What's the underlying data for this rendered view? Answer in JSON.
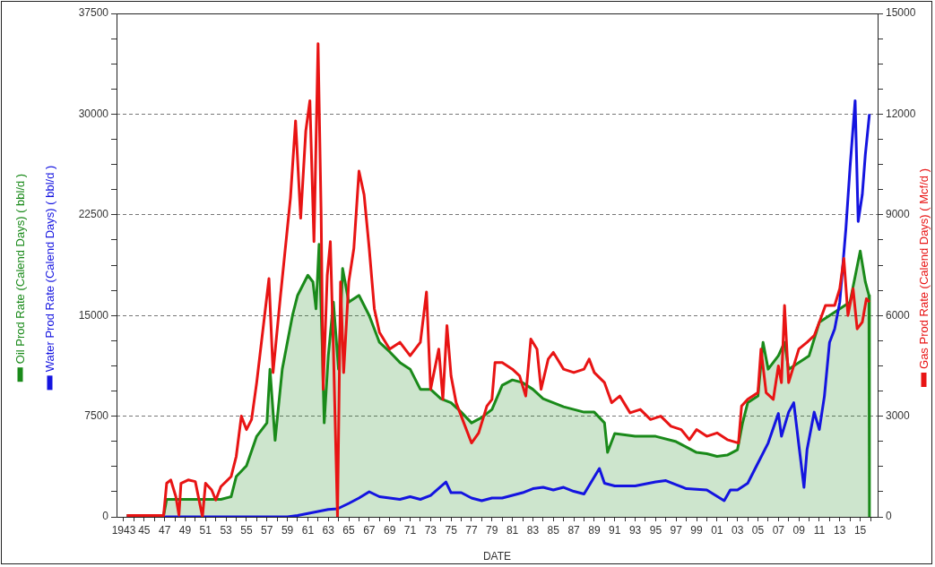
{
  "chart_data": {
    "type": "line",
    "xlabel": "DATE",
    "xlim": [
      1942.3,
      2016.7
    ],
    "xticks": [
      {
        "value": 1943,
        "label": "1943"
      },
      {
        "value": 1944,
        "label": null
      },
      {
        "value": 1945,
        "label": "45"
      },
      {
        "value": 1946,
        "label": null
      },
      {
        "value": 1947,
        "label": "47"
      },
      {
        "value": 1948,
        "label": null
      },
      {
        "value": 1949,
        "label": "49"
      },
      {
        "value": 1950,
        "label": null
      },
      {
        "value": 1951,
        "label": "51"
      },
      {
        "value": 1952,
        "label": null
      },
      {
        "value": 1953,
        "label": "53"
      },
      {
        "value": 1954,
        "label": null
      },
      {
        "value": 1955,
        "label": "55"
      },
      {
        "value": 1956,
        "label": null
      },
      {
        "value": 1957,
        "label": "57"
      },
      {
        "value": 1958,
        "label": null
      },
      {
        "value": 1959,
        "label": "59"
      },
      {
        "value": 1960,
        "label": null
      },
      {
        "value": 1961,
        "label": "61"
      },
      {
        "value": 1962,
        "label": null
      },
      {
        "value": 1963,
        "label": "63"
      },
      {
        "value": 1964,
        "label": null
      },
      {
        "value": 1965,
        "label": "65"
      },
      {
        "value": 1966,
        "label": null
      },
      {
        "value": 1967,
        "label": "67"
      },
      {
        "value": 1968,
        "label": null
      },
      {
        "value": 1969,
        "label": "69"
      },
      {
        "value": 1970,
        "label": null
      },
      {
        "value": 1971,
        "label": "71"
      },
      {
        "value": 1972,
        "label": null
      },
      {
        "value": 1973,
        "label": "73"
      },
      {
        "value": 1974,
        "label": null
      },
      {
        "value": 1975,
        "label": "75"
      },
      {
        "value": 1976,
        "label": null
      },
      {
        "value": 1977,
        "label": "77"
      },
      {
        "value": 1978,
        "label": null
      },
      {
        "value": 1979,
        "label": "79"
      },
      {
        "value": 1980,
        "label": null
      },
      {
        "value": 1981,
        "label": "81"
      },
      {
        "value": 1982,
        "label": null
      },
      {
        "value": 1983,
        "label": "83"
      },
      {
        "value": 1984,
        "label": null
      },
      {
        "value": 1985,
        "label": "85"
      },
      {
        "value": 1986,
        "label": null
      },
      {
        "value": 1987,
        "label": "87"
      },
      {
        "value": 1988,
        "label": null
      },
      {
        "value": 1989,
        "label": "89"
      },
      {
        "value": 1990,
        "label": null
      },
      {
        "value": 1991,
        "label": "91"
      },
      {
        "value": 1992,
        "label": null
      },
      {
        "value": 1993,
        "label": "93"
      },
      {
        "value": 1994,
        "label": null
      },
      {
        "value": 1995,
        "label": "95"
      },
      {
        "value": 1996,
        "label": null
      },
      {
        "value": 1997,
        "label": "97"
      },
      {
        "value": 1998,
        "label": null
      },
      {
        "value": 1999,
        "label": "99"
      },
      {
        "value": 2000,
        "label": null
      },
      {
        "value": 2001,
        "label": "01"
      },
      {
        "value": 2002,
        "label": null
      },
      {
        "value": 2003,
        "label": "03"
      },
      {
        "value": 2004,
        "label": null
      },
      {
        "value": 2005,
        "label": "05"
      },
      {
        "value": 2006,
        "label": null
      },
      {
        "value": 2007,
        "label": "07"
      },
      {
        "value": 2008,
        "label": null
      },
      {
        "value": 2009,
        "label": "09"
      },
      {
        "value": 2010,
        "label": null
      },
      {
        "value": 2011,
        "label": "11"
      },
      {
        "value": 2012,
        "label": null
      },
      {
        "value": 2013,
        "label": "13"
      },
      {
        "value": 2014,
        "label": null
      },
      {
        "value": 2015,
        "label": "15"
      },
      {
        "value": 2016,
        "label": null
      }
    ],
    "ylim": [
      0,
      37500
    ],
    "yticks": [
      0,
      {
        "value": 1875,
        "label": null
      },
      {
        "value": 3750,
        "label": null
      },
      {
        "value": 5625,
        "label": null
      },
      7500,
      {
        "value": 9375,
        "label": null
      },
      {
        "value": 11250,
        "label": null
      },
      {
        "value": 13125,
        "label": null
      },
      15000,
      {
        "value": 16875,
        "label": null
      },
      {
        "value": 18750,
        "label": null
      },
      {
        "value": 20625,
        "label": null
      },
      22500,
      {
        "value": 24375,
        "label": null
      },
      {
        "value": 26250,
        "label": null
      },
      {
        "value": 28125,
        "label": null
      },
      30000,
      {
        "value": 31875,
        "label": null
      },
      {
        "value": 33750,
        "label": null
      },
      {
        "value": 35625,
        "label": null
      },
      37500
    ],
    "y2lim": [
      0,
      15000
    ],
    "y2ticks": [
      0,
      {
        "value": 750,
        "label": null
      },
      {
        "value": 1500,
        "label": null
      },
      {
        "value": 2250,
        "label": null
      },
      3000,
      {
        "value": 3750,
        "label": null
      },
      {
        "value": 4500,
        "label": null
      },
      {
        "value": 5250,
        "label": null
      },
      6000,
      {
        "value": 6750,
        "label": null
      },
      {
        "value": 7500,
        "label": null
      },
      {
        "value": 8250,
        "label": null
      },
      9000,
      {
        "value": 9750,
        "label": null
      },
      {
        "value": 10500,
        "label": null
      },
      {
        "value": 11250,
        "label": null
      },
      12000,
      {
        "value": 12750,
        "label": null
      },
      {
        "value": 13500,
        "label": null
      },
      {
        "value": 14250,
        "label": null
      },
      15000
    ],
    "grid": "y",
    "legend": "left",
    "line_style": "solid",
    "series": [
      {
        "name": "Oil Prod Rate (Calend Days) ( bbl/d )",
        "type": "area",
        "axis": "y",
        "color": "#1a8a1a",
        "x": [
          1943.3,
          1946.9,
          1947.2,
          1950,
          1952.5,
          1953.5,
          1954,
          1955,
          1956,
          1957,
          1957.3,
          1957.8,
          1958.5,
          1959.5,
          1960,
          1961,
          1961.5,
          1961.8,
          1962.1,
          1962.4,
          1962.6,
          1963,
          1963.5,
          1964,
          1964.4,
          1965,
          1966,
          1967,
          1968,
          1969,
          1970,
          1971,
          1972,
          1973,
          1974,
          1975,
          1976,
          1977,
          1978,
          1979,
          1980,
          1981,
          1982,
          1983,
          1984,
          1985,
          1986,
          1987,
          1988,
          1989,
          1990,
          1990.3,
          1991,
          1993,
          1995,
          1997,
          1998,
          1999,
          2000,
          2001,
          2002,
          2003,
          2003.5,
          2004,
          2005,
          2005.5,
          2006,
          2007,
          2007.6,
          2008,
          2009,
          2010,
          2011,
          2012,
          2013,
          2014,
          2015,
          2015.5,
          2015.85,
          2015.9
        ],
        "values": [
          100,
          100,
          1300,
          1300,
          1300,
          1500,
          3000,
          3800,
          6000,
          7000,
          11000,
          5700,
          11000,
          15000,
          16500,
          18000,
          17500,
          15500,
          20300,
          13000,
          7000,
          12000,
          16000,
          11000,
          18500,
          16000,
          16500,
          15000,
          13000,
          12300,
          11500,
          11000,
          9500,
          9500,
          8800,
          8500,
          7800,
          7000,
          7400,
          8000,
          9800,
          10200,
          10000,
          9500,
          8800,
          8500,
          8200,
          8000,
          7800,
          7800,
          7000,
          4800,
          6200,
          6000,
          6000,
          5600,
          5200,
          4800,
          4700,
          4500,
          4600,
          5000,
          7000,
          8500,
          9000,
          13000,
          11000,
          12000,
          13000,
          11000,
          11500,
          12000,
          14500,
          15000,
          15500,
          16000,
          19800,
          17500,
          16500,
          0
        ]
      },
      {
        "name": "Water Prod Rate (Calend Days) ( bbl/d )",
        "type": "line",
        "axis": "y",
        "color": "#1414e0",
        "x": [
          1943.3,
          1959,
          1960,
          1961,
          1962,
          1963,
          1963.9,
          1965,
          1966,
          1967,
          1968,
          1969,
          1970,
          1971,
          1972,
          1973,
          1974.5,
          1975,
          1976,
          1977,
          1978,
          1979,
          1980,
          1981,
          1982,
          1983,
          1984,
          1985,
          1986,
          1987,
          1988,
          1989.5,
          1990,
          1991,
          1993,
          1995,
          1996,
          1997,
          1998,
          2000,
          2001.7,
          2002.3,
          2003,
          2004,
          2005,
          2006,
          2007,
          2007.3,
          2008,
          2008.5,
          2009.5,
          2009.8,
          2010.5,
          2011,
          2011.5,
          2012,
          2012.5,
          2013,
          2013.6,
          2014,
          2014.5,
          2014.8,
          2015.2,
          2015.5,
          2015.9
        ],
        "values": [
          0,
          0,
          100,
          250,
          400,
          550,
          600,
          1000,
          1400,
          1870,
          1500,
          1400,
          1300,
          1500,
          1300,
          1600,
          2600,
          1800,
          1800,
          1400,
          1200,
          1400,
          1400,
          1600,
          1800,
          2100,
          2200,
          2000,
          2200,
          1900,
          1700,
          3600,
          2500,
          2300,
          2300,
          2600,
          2700,
          2400,
          2100,
          2000,
          1200,
          2000,
          2000,
          2500,
          4000,
          5500,
          7700,
          6000,
          7800,
          8500,
          2200,
          5000,
          7800,
          6500,
          9000,
          13000,
          14000,
          16000,
          21500,
          26000,
          31000,
          22000,
          24000,
          27000,
          30000
        ]
      },
      {
        "name": "Gas Prod Rate (Calend Days) ( Mcf/d )",
        "type": "line",
        "axis": "y2",
        "color": "#e81414",
        "x": [
          1943.3,
          1946.9,
          1947.2,
          1947.6,
          1948.1,
          1948.4,
          1948.6,
          1949.3,
          1950,
          1950.7,
          1951,
          1951.6,
          1952,
          1952.5,
          1953.5,
          1954,
          1954.5,
          1955,
          1955.5,
          1956,
          1957.2,
          1957.6,
          1958.3,
          1959.3,
          1959.8,
          1960.3,
          1960.8,
          1961.2,
          1961.6,
          1962,
          1962.3,
          1962.5,
          1962.9,
          1963.2,
          1963.5,
          1963.9,
          1964.2,
          1964.5,
          1965,
          1965.5,
          1966,
          1966.5,
          1967,
          1967.5,
          1968,
          1969,
          1970,
          1971,
          1972,
          1972.6,
          1973,
          1973.8,
          1974.2,
          1974.6,
          1975,
          1975.5,
          1976,
          1977,
          1977.7,
          1978.5,
          1979,
          1979.3,
          1980,
          1981,
          1981.7,
          1982.3,
          1982.8,
          1983.4,
          1983.8,
          1984.5,
          1985,
          1986,
          1987,
          1988,
          1988.5,
          1989,
          1990,
          1990.7,
          1991.5,
          1992.5,
          1993.5,
          1994.5,
          1995.5,
          1996.5,
          1997.5,
          1998.3,
          1999,
          2000,
          2001,
          2002,
          2003.1,
          2003.4,
          2004,
          2005,
          2005.3,
          2005.8,
          2006.5,
          2007,
          2007.3,
          2007.6,
          2008,
          2009,
          2009.8,
          2010.5,
          2011,
          2011.6,
          2012.5,
          2013,
          2013.4,
          2013.8,
          2014.3,
          2014.7,
          2015.2,
          2015.6,
          2015.9
        ],
        "values": [
          40,
          40,
          1000,
          1100,
          600,
          50,
          1000,
          1100,
          1050,
          0,
          1000,
          800,
          500,
          900,
          1200,
          1800,
          3000,
          2600,
          2900,
          4000,
          7100,
          4300,
          6500,
          9500,
          11800,
          8900,
          11500,
          12400,
          8200,
          14100,
          9000,
          3800,
          7200,
          8200,
          5000,
          0,
          7000,
          4300,
          7000,
          8000,
          10300,
          9600,
          8000,
          6200,
          5500,
          5000,
          5200,
          4800,
          5200,
          6700,
          3800,
          5000,
          3500,
          5700,
          4200,
          3400,
          3000,
          2200,
          2500,
          3300,
          3500,
          4600,
          4600,
          4400,
          4200,
          3600,
          5300,
          5000,
          3800,
          4700,
          4900,
          4400,
          4300,
          4400,
          4700,
          4300,
          4000,
          3400,
          3600,
          3100,
          3200,
          2900,
          3000,
          2700,
          2600,
          2300,
          2600,
          2400,
          2500,
          2300,
          2200,
          3300,
          3500,
          3700,
          5000,
          3700,
          3500,
          4500,
          4000,
          6300,
          4000,
          5000,
          5200,
          5400,
          5800,
          6300,
          6300,
          6800,
          7700,
          6000,
          6800,
          5600,
          5800,
          6500,
          6400
        ]
      }
    ]
  }
}
